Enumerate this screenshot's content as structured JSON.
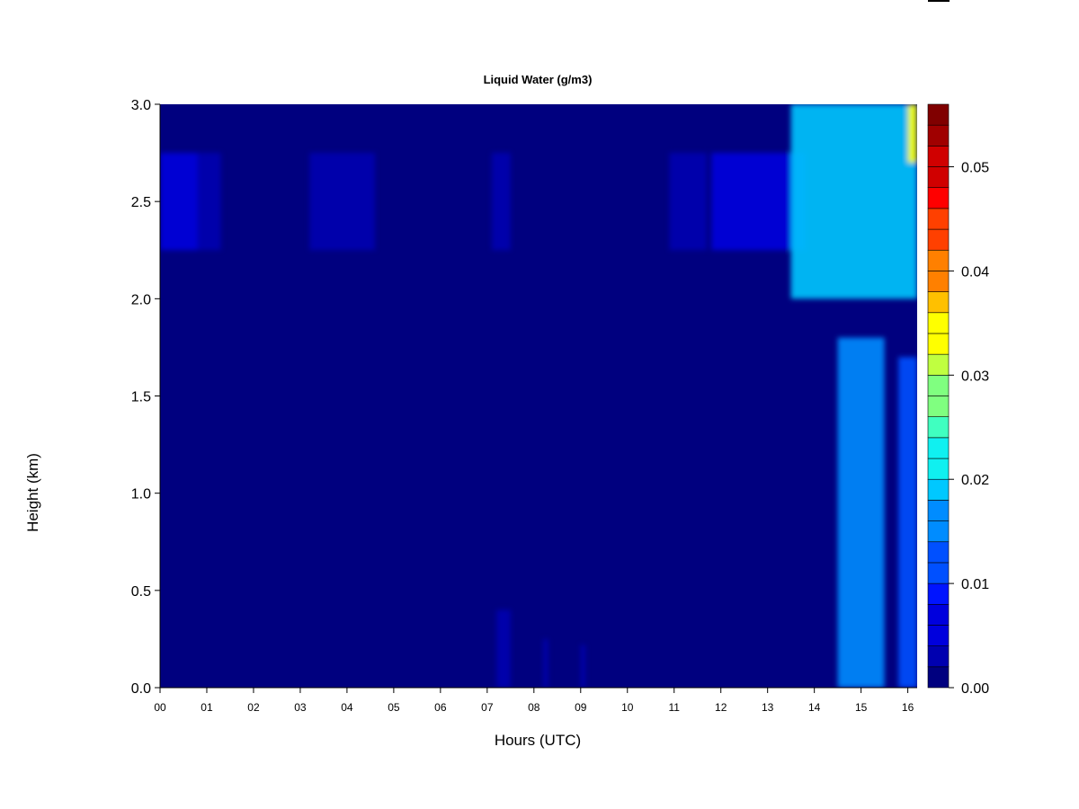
{
  "chart_data": {
    "type": "heatmap",
    "title": "Liquid Water (g/m3)",
    "xlabel": "Hours (UTC)",
    "ylabel": "Height (km)",
    "xlim": [
      0,
      16.2
    ],
    "ylim": [
      0,
      3.0
    ],
    "x_ticks": [
      "00",
      "01",
      "02",
      "03",
      "04",
      "05",
      "06",
      "07",
      "08",
      "09",
      "10",
      "11",
      "12",
      "13",
      "14",
      "15",
      "16"
    ],
    "y_ticks": [
      "0.0",
      "0.5",
      "1.0",
      "1.5",
      "2.0",
      "2.5",
      "3.0"
    ],
    "colorbar": {
      "range": [
        0,
        0.056
      ],
      "levels": 28,
      "tick_labels": [
        "0.00",
        "0.01",
        "0.02",
        "0.03",
        "0.04",
        "0.05"
      ],
      "colors": [
        "#00007f",
        "#0000b0",
        "#0000dd",
        "#0014ff",
        "#0050ff",
        "#008cff",
        "#00c8ff",
        "#10f0f0",
        "#40ffc0",
        "#80ff80",
        "#c0ff40",
        "#ffff00",
        "#ffc000",
        "#ff8000",
        "#ff4000",
        "#ff0000",
        "#d00000",
        "#a00000",
        "#800000"
      ]
    },
    "features": [
      {
        "x": [
          0.0,
          0.8
        ],
        "y": [
          2.25,
          2.75
        ],
        "value": 0.006
      },
      {
        "x": [
          0.8,
          1.3
        ],
        "y": [
          2.25,
          2.75
        ],
        "value": 0.003
      },
      {
        "x": [
          3.2,
          4.6
        ],
        "y": [
          2.25,
          2.75
        ],
        "value": 0.002
      },
      {
        "x": [
          7.1,
          7.5
        ],
        "y": [
          2.25,
          2.75
        ],
        "value": 0.002
      },
      {
        "x": [
          10.9,
          11.7
        ],
        "y": [
          2.25,
          2.75
        ],
        "value": 0.002
      },
      {
        "x": [
          11.8,
          13.8
        ],
        "y": [
          2.25,
          2.75
        ],
        "value": 0.007
      },
      {
        "x": [
          13.5,
          16.2
        ],
        "y": [
          2.0,
          3.0
        ],
        "value": 0.018
      },
      {
        "x": [
          14.5,
          15.5
        ],
        "y": [
          0.0,
          1.8
        ],
        "value": 0.016
      },
      {
        "x": [
          15.8,
          16.2
        ],
        "y": [
          0.0,
          1.7
        ],
        "value": 0.012
      },
      {
        "x": [
          7.2,
          7.5
        ],
        "y": [
          0.0,
          0.4
        ],
        "value": 0.003
      },
      {
        "x": [
          8.2,
          8.3
        ],
        "y": [
          0.0,
          0.25
        ],
        "value": 0.003
      },
      {
        "x": [
          9.0,
          9.1
        ],
        "y": [
          0.0,
          0.22
        ],
        "value": 0.003
      },
      {
        "x": [
          16.0,
          16.2
        ],
        "y": [
          2.7,
          3.0
        ],
        "value": 0.035
      }
    ]
  }
}
